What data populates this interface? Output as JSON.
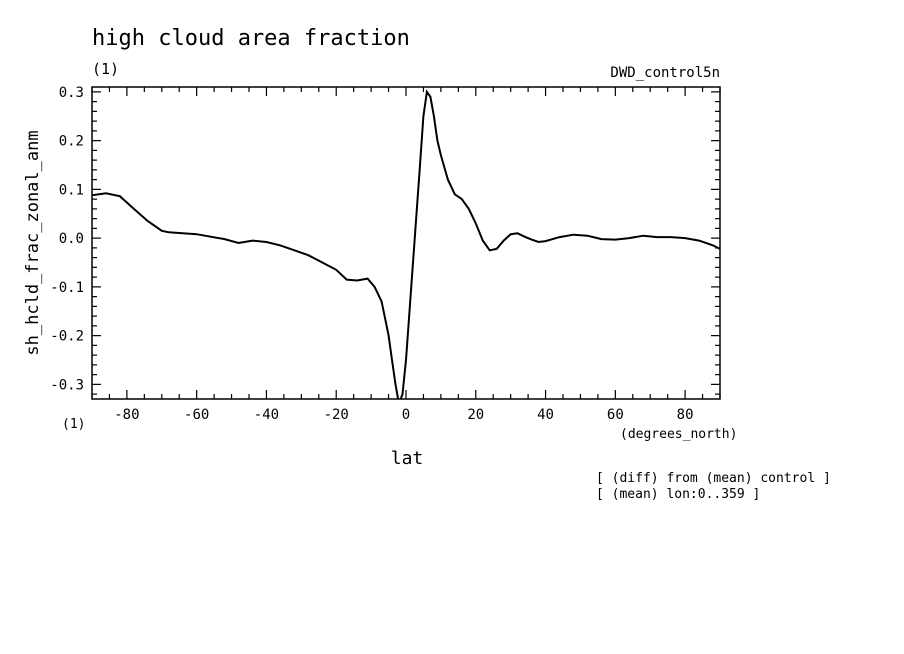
{
  "chart_data": {
    "type": "line",
    "title": "high cloud area fraction",
    "units_top": "(1)",
    "units_bottom": "(1)",
    "experiment": "DWD_control5n",
    "xlabel": "lat",
    "xunits": "(degrees_north)",
    "ylabel": "sh_hcld_frac_zonal_anm",
    "xlim": [
      -90,
      90
    ],
    "ylim": [
      -0.33,
      0.31
    ],
    "xticks": [
      "-80",
      "-60",
      "-40",
      "-20",
      "0",
      "20",
      "40",
      "60",
      "80"
    ],
    "yticks": [
      "0.3",
      "0.2",
      "0.1",
      "0.0",
      "-0.1",
      "-0.2",
      "-0.3"
    ],
    "notes": [
      "[ (diff) from (mean) control ]",
      "[ (mean) lon:0..359 ]"
    ],
    "series": [
      {
        "x": [
          -90,
          -86,
          -82,
          -78,
          -74,
          -70,
          -68,
          -64,
          -60,
          -56,
          -52,
          -48,
          -44,
          -40,
          -36,
          -32,
          -28,
          -24,
          -20,
          -17,
          -14,
          -11,
          -9,
          -7,
          -5,
          -4,
          -3,
          -2,
          -1,
          0,
          1,
          2,
          3,
          4,
          5,
          6,
          7,
          8,
          9,
          10,
          12,
          14,
          16,
          18,
          20,
          22,
          24,
          26,
          28,
          30,
          32,
          34,
          36,
          38,
          40,
          44,
          48,
          52,
          56,
          60,
          64,
          68,
          72,
          76,
          80,
          84,
          88,
          90
        ],
        "y": [
          0.088,
          0.092,
          0.086,
          0.06,
          0.035,
          0.015,
          0.012,
          0.01,
          0.008,
          0.003,
          -0.002,
          -0.01,
          -0.005,
          -0.008,
          -0.015,
          -0.025,
          -0.035,
          -0.05,
          -0.065,
          -0.085,
          -0.087,
          -0.083,
          -0.1,
          -0.13,
          -0.2,
          -0.25,
          -0.3,
          -0.34,
          -0.32,
          -0.25,
          -0.15,
          -0.05,
          0.05,
          0.15,
          0.25,
          0.3,
          0.29,
          0.25,
          0.2,
          0.17,
          0.12,
          0.09,
          0.08,
          0.06,
          0.03,
          -0.005,
          -0.025,
          -0.022,
          -0.005,
          0.008,
          0.01,
          0.003,
          -0.003,
          -0.008,
          -0.006,
          0.002,
          0.007,
          0.005,
          -0.002,
          -0.003,
          0.0,
          0.005,
          0.002,
          0.002,
          0.0,
          -0.005,
          -0.015,
          -0.022
        ]
      }
    ]
  }
}
